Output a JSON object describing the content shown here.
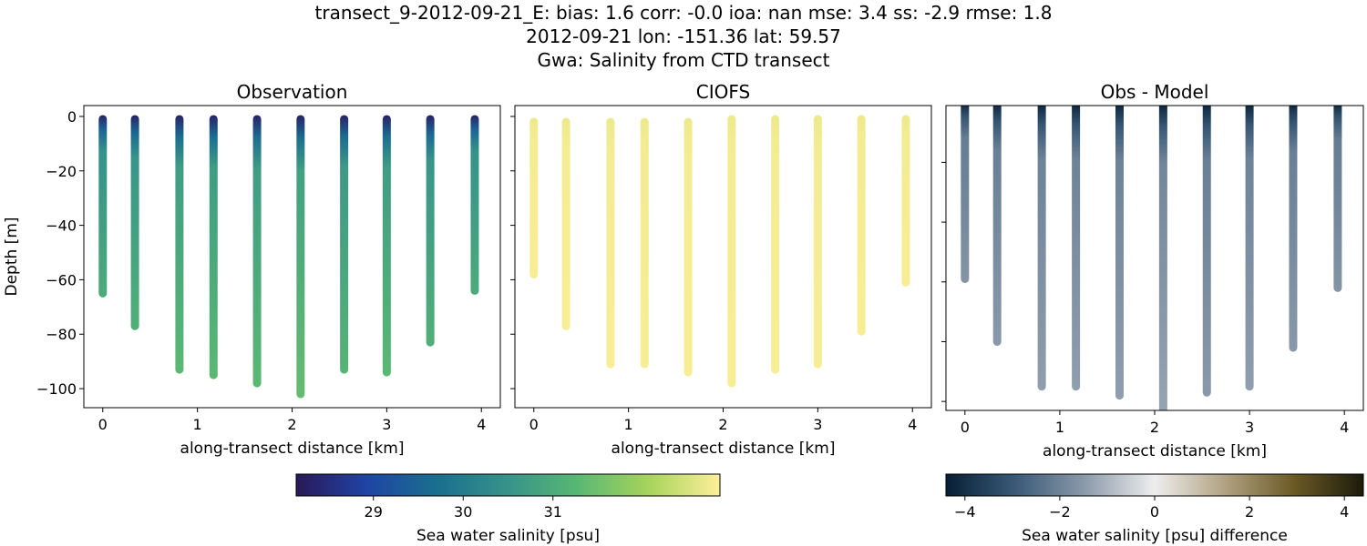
{
  "title_lines": [
    "transect_9-2012-09-21_E: bias: 1.6  corr: -0.0  ioa: nan  mse: 3.4  ss: -2.9  rmse: 1.8",
    "2012-09-21 lon: -151.36 lat: 59.57",
    "Gwa: Salinity from CTD transect"
  ],
  "chart_data": [
    {
      "type": "scatter",
      "title": "Observation",
      "xlabel": "along-transect distance [km]",
      "ylabel": "Depth [m]",
      "xlim": [
        -0.2,
        4.2
      ],
      "ylim": [
        -107,
        4
      ],
      "xticks": [
        0,
        1,
        2,
        3,
        4
      ],
      "yticks": [
        0,
        -20,
        -40,
        -60,
        -80,
        -100
      ],
      "colormap": "haline",
      "stations": [
        {
          "x": 0.0,
          "top": -1,
          "bottom": -65,
          "surface_value": 28.3,
          "deep_value": 31.0
        },
        {
          "x": 0.34,
          "top": -1,
          "bottom": -77,
          "surface_value": 28.3,
          "deep_value": 31.1
        },
        {
          "x": 0.81,
          "top": -1,
          "bottom": -93,
          "surface_value": 28.3,
          "deep_value": 31.3
        },
        {
          "x": 1.17,
          "top": -1,
          "bottom": -95,
          "surface_value": 28.3,
          "deep_value": 31.3
        },
        {
          "x": 1.63,
          "top": -1,
          "bottom": -98,
          "surface_value": 28.3,
          "deep_value": 31.3
        },
        {
          "x": 2.09,
          "top": -1,
          "bottom": -102,
          "surface_value": 28.3,
          "deep_value": 31.4
        },
        {
          "x": 2.55,
          "top": -1,
          "bottom": -93,
          "surface_value": 28.3,
          "deep_value": 31.2
        },
        {
          "x": 3.0,
          "top": -1,
          "bottom": -94,
          "surface_value": 28.3,
          "deep_value": 31.3
        },
        {
          "x": 3.46,
          "top": -1,
          "bottom": -83,
          "surface_value": 28.3,
          "deep_value": 31.1
        },
        {
          "x": 3.93,
          "top": -1,
          "bottom": -64,
          "surface_value": 28.3,
          "deep_value": 31.0
        }
      ]
    },
    {
      "type": "scatter",
      "title": "CIOFS",
      "xlabel": "along-transect distance [km]",
      "xlim": [
        -0.2,
        4.2
      ],
      "ylim": [
        -107,
        4
      ],
      "xticks": [
        0,
        1,
        2,
        3,
        4
      ],
      "colormap": "haline",
      "stations": [
        {
          "x": 0.0,
          "top": -2,
          "bottom": -58,
          "surface_value": 32.7,
          "deep_value": 32.8
        },
        {
          "x": 0.34,
          "top": -2,
          "bottom": -77,
          "surface_value": 32.7,
          "deep_value": 32.8
        },
        {
          "x": 0.81,
          "top": -2,
          "bottom": -91,
          "surface_value": 32.7,
          "deep_value": 32.8
        },
        {
          "x": 1.17,
          "top": -2,
          "bottom": -91,
          "surface_value": 32.7,
          "deep_value": 32.8
        },
        {
          "x": 1.63,
          "top": -2,
          "bottom": -94,
          "surface_value": 32.7,
          "deep_value": 32.8
        },
        {
          "x": 2.09,
          "top": -1,
          "bottom": -98,
          "surface_value": 32.7,
          "deep_value": 32.8
        },
        {
          "x": 2.55,
          "top": -1,
          "bottom": -93,
          "surface_value": 32.7,
          "deep_value": 32.8
        },
        {
          "x": 3.0,
          "top": -1,
          "bottom": -91,
          "surface_value": 32.7,
          "deep_value": 32.8
        },
        {
          "x": 3.46,
          "top": -1,
          "bottom": -79,
          "surface_value": 32.7,
          "deep_value": 32.8
        },
        {
          "x": 3.93,
          "top": -1,
          "bottom": -61,
          "surface_value": 32.7,
          "deep_value": 32.8
        }
      ]
    },
    {
      "type": "scatter",
      "title": "Obs - Model",
      "xlabel": "along-transect distance [km]",
      "xlim": [
        -0.2,
        4.2
      ],
      "ylim": [
        -103,
        -1
      ],
      "xticks": [
        0,
        1,
        2,
        3,
        4
      ],
      "yticks": [
        -20,
        -40,
        -60,
        -80,
        -100
      ],
      "colormap": "diff",
      "stations": [
        {
          "x": 0.0,
          "top": -1,
          "bottom": -59,
          "surface_value": -4.4,
          "deep_value": -1.6
        },
        {
          "x": 0.34,
          "top": -1,
          "bottom": -80,
          "surface_value": -4.4,
          "deep_value": -1.5
        },
        {
          "x": 0.81,
          "top": -1,
          "bottom": -95,
          "surface_value": -4.4,
          "deep_value": -1.4
        },
        {
          "x": 1.17,
          "top": -1,
          "bottom": -95,
          "surface_value": -4.4,
          "deep_value": -1.4
        },
        {
          "x": 1.63,
          "top": -1,
          "bottom": -98,
          "surface_value": -4.4,
          "deep_value": -1.4
        },
        {
          "x": 2.09,
          "top": -1,
          "bottom": -103,
          "surface_value": -4.4,
          "deep_value": -1.3
        },
        {
          "x": 2.55,
          "top": -1,
          "bottom": -97,
          "surface_value": -4.4,
          "deep_value": -1.5
        },
        {
          "x": 3.0,
          "top": -1,
          "bottom": -95,
          "surface_value": -4.4,
          "deep_value": -1.4
        },
        {
          "x": 3.46,
          "top": -1,
          "bottom": -82,
          "surface_value": -4.4,
          "deep_value": -1.5
        },
        {
          "x": 3.93,
          "top": -1,
          "bottom": -62,
          "surface_value": -4.4,
          "deep_value": -1.6
        }
      ]
    }
  ],
  "colorbars": [
    {
      "label": "Sea water salinity [psu]",
      "range": [
        28.14,
        32.86
      ],
      "ticks": [
        29,
        30,
        31
      ],
      "colormap": "haline",
      "colors": [
        "#2a1858",
        "#1f44a4",
        "#1a6f8e",
        "#37938a",
        "#5ab873",
        "#a8d45c",
        "#fdef9a"
      ]
    },
    {
      "label": "Sea water salinity [psu] difference",
      "range": [
        -4.4,
        4.4
      ],
      "ticks": [
        -4,
        -2,
        0,
        2,
        4
      ],
      "colormap": "diff",
      "colors": [
        "#071f35",
        "#3a5a78",
        "#8b9aaa",
        "#eeeeee",
        "#b2a283",
        "#6b5a25",
        "#1c1a0b"
      ]
    }
  ]
}
